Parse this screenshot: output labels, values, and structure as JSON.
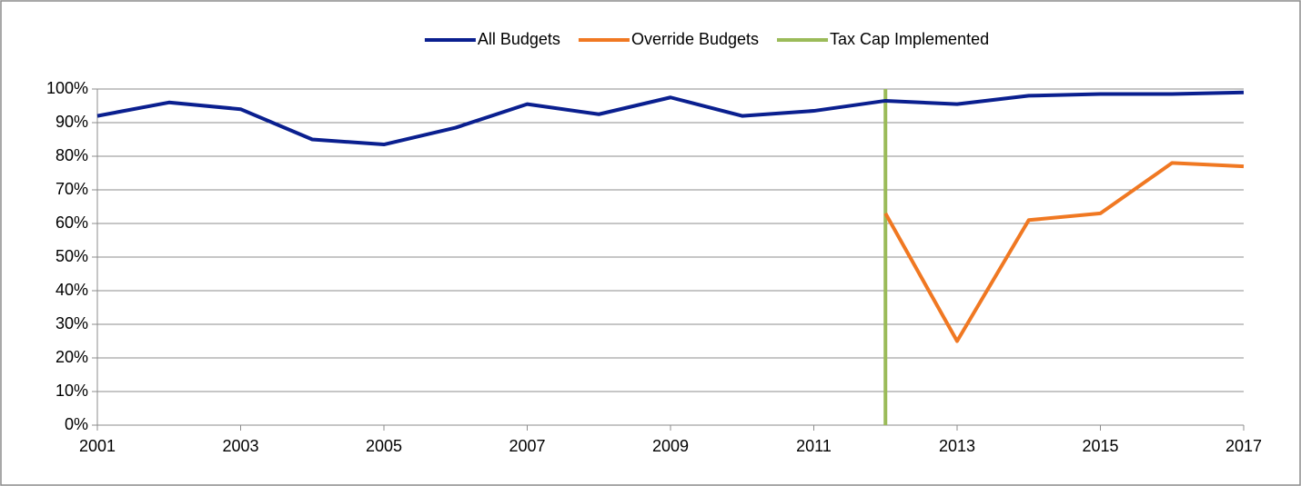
{
  "chart_data": {
    "type": "line",
    "x": [
      2001,
      2002,
      2003,
      2004,
      2005,
      2006,
      2007,
      2008,
      2009,
      2010,
      2011,
      2012,
      2013,
      2014,
      2015,
      2016,
      2017
    ],
    "series": [
      {
        "name": "All Budgets",
        "color": "#0a1f8f",
        "values": [
          92,
          96,
          94,
          85,
          83.5,
          88.5,
          95.5,
          92.5,
          97.5,
          92,
          93.5,
          96.5,
          95.5,
          98,
          98.5,
          98.5,
          99
        ]
      },
      {
        "name": "Override Budgets",
        "color": "#f07822",
        "values": [
          null,
          null,
          null,
          null,
          null,
          null,
          null,
          null,
          null,
          null,
          null,
          63,
          25,
          61,
          63,
          78,
          77
        ]
      }
    ],
    "vlines": [
      {
        "name": "Tax Cap Implemented",
        "color": "#9bbb59",
        "x": 2012
      }
    ],
    "xlim": [
      2001,
      2017
    ],
    "xticks": [
      2001,
      2003,
      2005,
      2007,
      2009,
      2011,
      2013,
      2015,
      2017
    ],
    "ylim": [
      0,
      100
    ],
    "yticks": [
      {
        "value": 0,
        "label": "0%"
      },
      {
        "value": 10,
        "label": "10%"
      },
      {
        "value": 20,
        "label": "20%"
      },
      {
        "value": 30,
        "label": "30%"
      },
      {
        "value": 40,
        "label": "40%"
      },
      {
        "value": 50,
        "label": "50%"
      },
      {
        "value": 60,
        "label": "60%"
      },
      {
        "value": 70,
        "label": "70%"
      },
      {
        "value": 80,
        "label": "80%"
      },
      {
        "value": 90,
        "label": "90%"
      },
      {
        "value": 100,
        "label": "100%"
      }
    ],
    "grid": true,
    "legend": "top"
  }
}
